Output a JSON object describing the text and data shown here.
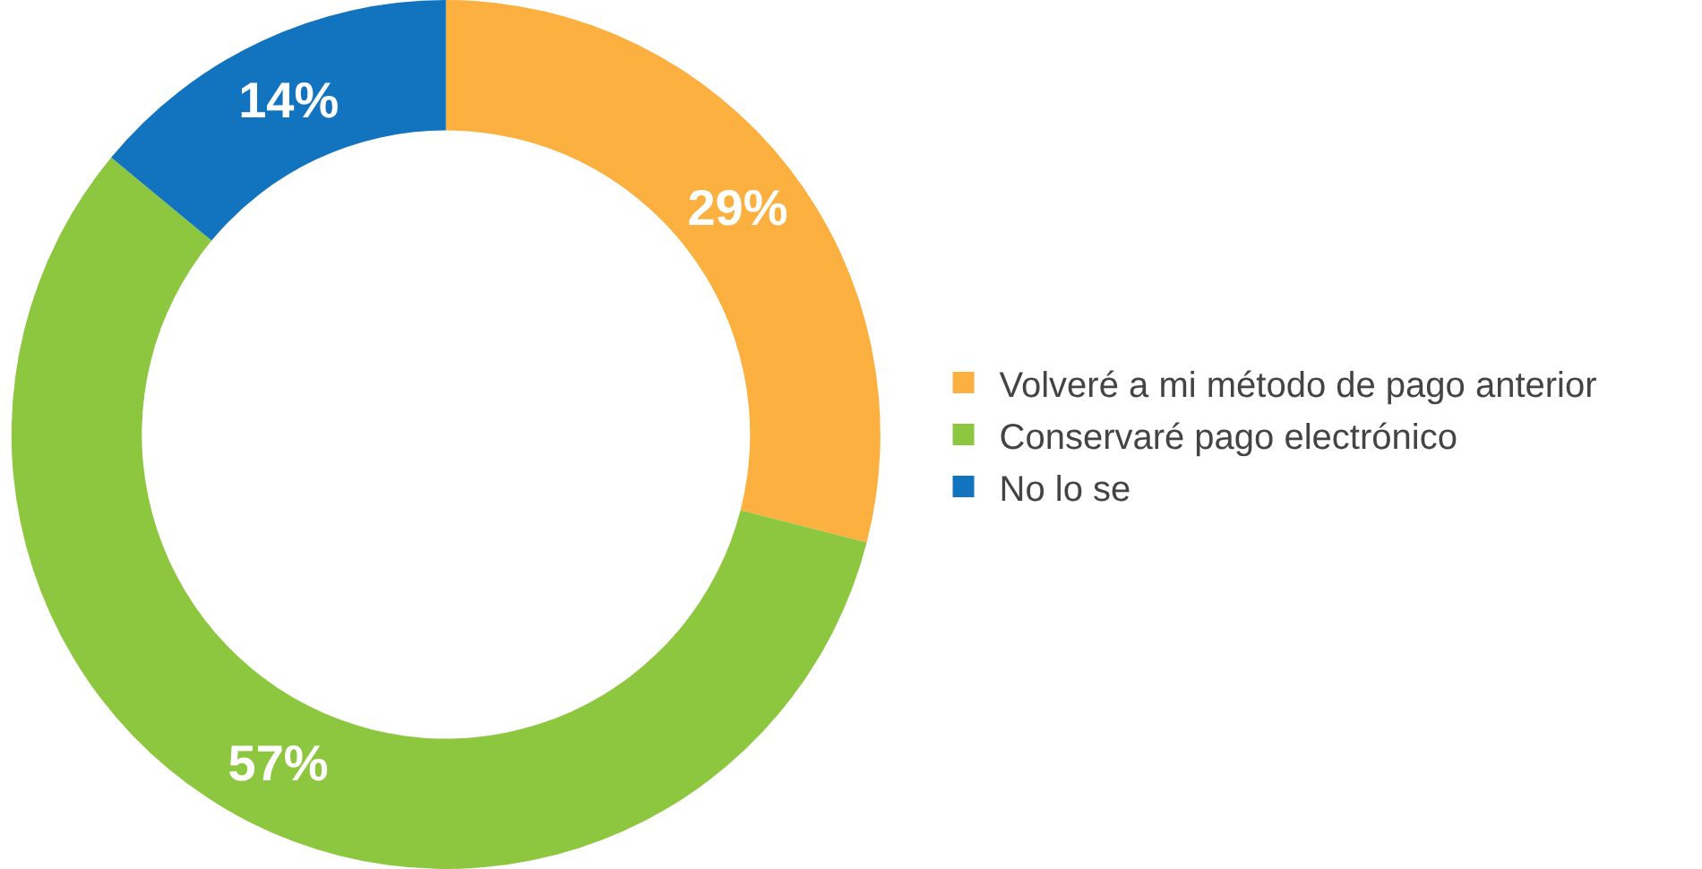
{
  "chart_data": {
    "type": "donut",
    "categories": [
      "Volveré a mi método de pago anterior",
      "Conservaré pago electrónico",
      "No lo se"
    ],
    "values": [
      29,
      57,
      14
    ],
    "value_labels": [
      "29%",
      "57%",
      "14%"
    ],
    "colors": [
      "#fbb040",
      "#8dc63f",
      "#1273bf"
    ],
    "legend": "right"
  }
}
